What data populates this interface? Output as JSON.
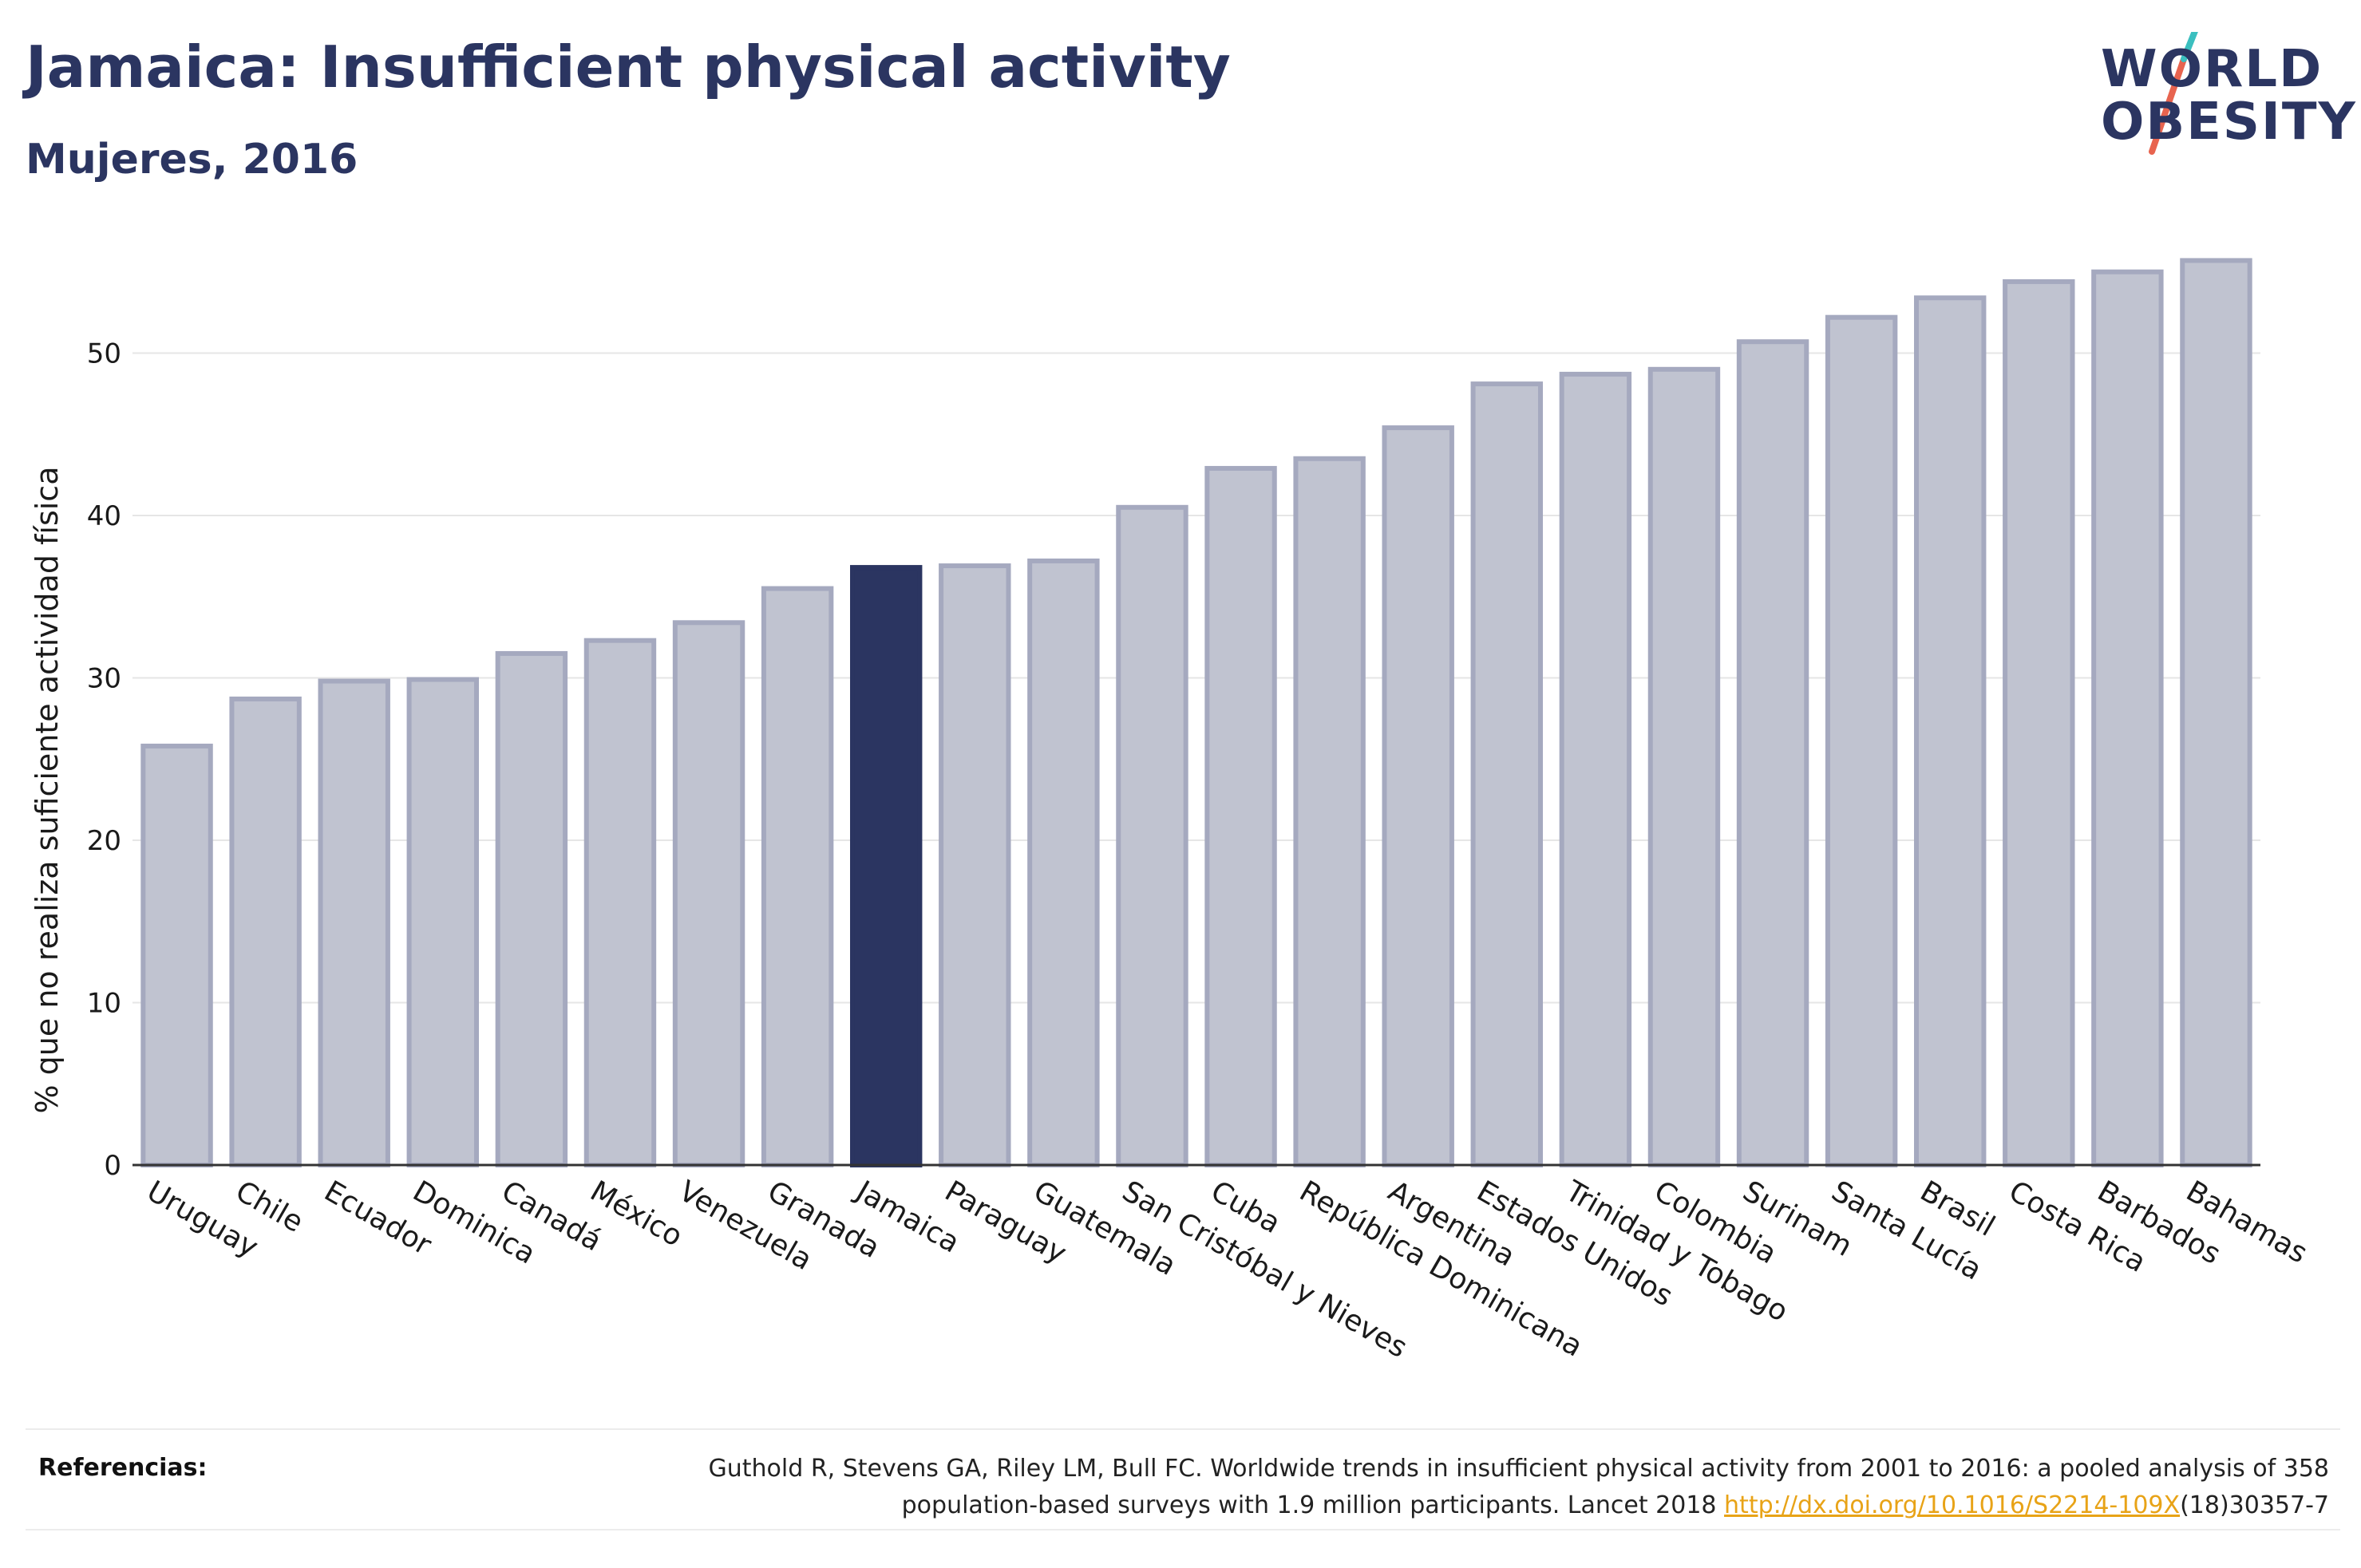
{
  "header": {
    "title": "Jamaica: Insufficient physical activity",
    "subtitle": "Mujeres, 2016"
  },
  "logo": {
    "line1": "WORLD",
    "line2": "OBESITY",
    "colors": {
      "text": "#2b3561",
      "slash_top": "#3bbfbf",
      "slash_bottom": "#e8644f"
    }
  },
  "chart_data": {
    "type": "bar",
    "ylabel": "% que no realiza suficiente actividad física",
    "ylim": [
      0,
      57
    ],
    "yticks": [
      0,
      10,
      20,
      30,
      40,
      50
    ],
    "grid": true,
    "highlight": "Jamaica",
    "colors": {
      "bar": "#c0c3d0",
      "bar_border": "#a5a9bf",
      "highlight": "#2b3561"
    },
    "categories": [
      "Uruguay",
      "Chile",
      "Ecuador",
      "Dominica",
      "Canadá",
      "México",
      "Venezuela",
      "Granada",
      "Jamaica",
      "Paraguay",
      "Guatemala",
      "San Cristóbal y Nieves",
      "Cuba",
      "República Dominicana",
      "Argentina",
      "Estados Unidos",
      "Trinidad y Tobago",
      "Colombia",
      "Surinam",
      "Santa Lucía",
      "Brasil",
      "Costa Rica",
      "Barbados",
      "Bahamas"
    ],
    "values": [
      25.8,
      28.7,
      29.8,
      29.9,
      31.5,
      32.3,
      33.4,
      35.5,
      36.8,
      36.9,
      37.2,
      40.5,
      42.9,
      43.5,
      45.4,
      48.1,
      48.7,
      49.0,
      50.7,
      52.2,
      53.4,
      54.4,
      55.0,
      55.7
    ]
  },
  "references": {
    "label": "Referencias:",
    "line1": "Guthold R, Stevens GA, Riley LM, Bull FC. Worldwide trends in insufficient physical activity from 2001 to 2016: a pooled analysis of 358",
    "line2_pre": "population-based surveys with 1.9 million participants. Lancet 2018 ",
    "link": "http://dx.doi.org/10.1016/S2214-109X",
    "line2_post": "(18)30357-7"
  }
}
